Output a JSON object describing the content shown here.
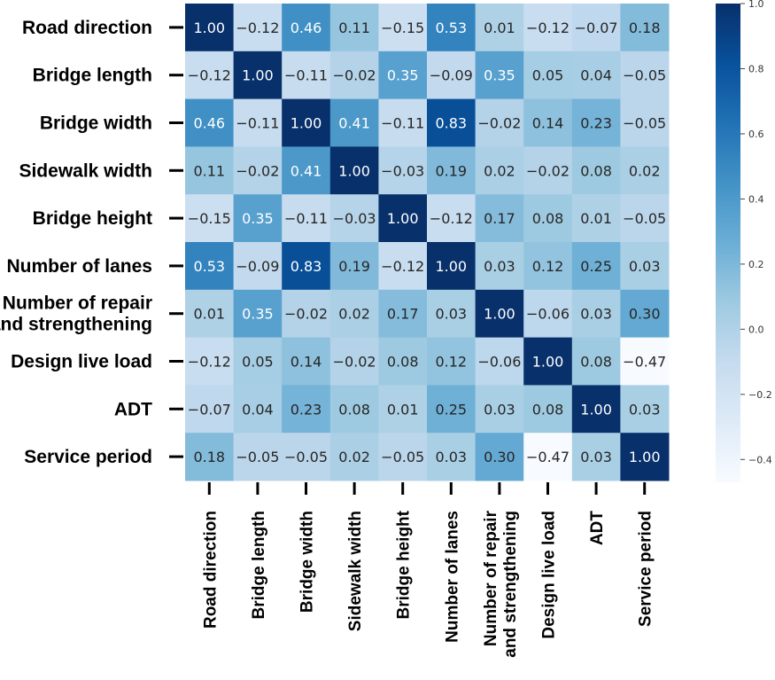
{
  "chart_data": {
    "type": "heatmap",
    "labels": [
      "Road direction",
      "Bridge length",
      "Bridge width",
      "Sidewalk width",
      "Bridge height",
      "Number of lanes",
      "Number of repair and strengthening",
      "Design live load",
      "ADT",
      "Service period"
    ],
    "row_labels": [
      [
        "Road direction"
      ],
      [
        "Bridge length"
      ],
      [
        "Bridge width"
      ],
      [
        "Sidewalk width"
      ],
      [
        "Bridge height"
      ],
      [
        "Number of lanes"
      ],
      [
        "Number of repair",
        "and strengthening"
      ],
      [
        "Design live load"
      ],
      [
        "ADT"
      ],
      [
        "Service period"
      ]
    ],
    "col_labels": [
      [
        "Road direction"
      ],
      [
        "Bridge length"
      ],
      [
        "Bridge width"
      ],
      [
        "Sidewalk width"
      ],
      [
        "Bridge height"
      ],
      [
        "Number of lanes"
      ],
      [
        "Number of repair",
        "and strengthening"
      ],
      [
        "Design live load"
      ],
      [
        "ADT"
      ],
      [
        "Service period"
      ]
    ],
    "values": [
      [
        1.0,
        -0.12,
        0.46,
        0.11,
        -0.15,
        0.53,
        0.01,
        -0.12,
        -0.07,
        0.18
      ],
      [
        -0.12,
        1.0,
        -0.11,
        -0.02,
        0.35,
        -0.09,
        0.35,
        0.05,
        0.04,
        -0.05
      ],
      [
        0.46,
        -0.11,
        1.0,
        0.41,
        -0.11,
        0.83,
        -0.02,
        0.14,
        0.23,
        -0.05
      ],
      [
        0.11,
        -0.02,
        0.41,
        1.0,
        -0.03,
        0.19,
        0.02,
        -0.02,
        0.08,
        0.02
      ],
      [
        -0.15,
        0.35,
        -0.11,
        -0.03,
        1.0,
        -0.12,
        0.17,
        0.08,
        0.01,
        -0.05
      ],
      [
        0.53,
        -0.09,
        0.83,
        0.19,
        -0.12,
        1.0,
        0.03,
        0.12,
        0.25,
        0.03
      ],
      [
        0.01,
        0.35,
        -0.02,
        0.02,
        0.17,
        0.03,
        1.0,
        -0.06,
        0.03,
        0.3
      ],
      [
        -0.12,
        0.05,
        0.14,
        -0.02,
        0.08,
        0.12,
        -0.06,
        1.0,
        0.08,
        -0.47
      ],
      [
        -0.07,
        0.04,
        0.23,
        0.08,
        0.01,
        0.25,
        0.03,
        0.08,
        1.0,
        0.03
      ],
      [
        0.18,
        -0.05,
        -0.05,
        0.02,
        -0.05,
        0.03,
        0.3,
        -0.47,
        0.03,
        1.0
      ]
    ],
    "cell_labels": [
      [
        "1.00",
        "−0.12",
        "0.46",
        "0.11",
        "−0.15",
        "0.53",
        "0.01",
        "−0.12",
        "−0.07",
        "0.18"
      ],
      [
        "−0.12",
        "1.00",
        "−0.11",
        "−0.02",
        "0.35",
        "−0.09",
        "0.35",
        "0.05",
        "0.04",
        "−0.05"
      ],
      [
        "0.46",
        "−0.11",
        "1.00",
        "0.41",
        "−0.11",
        "0.83",
        "−0.02",
        "0.14",
        "0.23",
        "−0.05"
      ],
      [
        "0.11",
        "−0.02",
        "0.41",
        "1.00",
        "−0.03",
        "0.19",
        "0.02",
        "−0.02",
        "0.08",
        "0.02"
      ],
      [
        "−0.15",
        "0.35",
        "−0.11",
        "−0.03",
        "1.00",
        "−0.12",
        "0.17",
        "0.08",
        "0.01",
        "−0.05"
      ],
      [
        "0.53",
        "−0.09",
        "0.83",
        "0.19",
        "−0.12",
        "1.00",
        "0.03",
        "0.12",
        "0.25",
        "0.03"
      ],
      [
        "0.01",
        "0.35",
        "−0.02",
        "0.02",
        "0.17",
        "0.03",
        "1.00",
        "−0.06",
        "0.03",
        "0.30"
      ],
      [
        "−0.12",
        "0.05",
        "0.14",
        "−0.02",
        "0.08",
        "0.12",
        "−0.06",
        "1.00",
        "0.08",
        "−0.47"
      ],
      [
        "−0.07",
        "0.04",
        "0.23",
        "0.08",
        "0.01",
        "0.25",
        "0.03",
        "0.08",
        "1.00",
        "0.03"
      ],
      [
        "0.18",
        "−0.05",
        "−0.05",
        "0.02",
        "−0.05",
        "0.03",
        "0.30",
        "−0.47",
        "0.03",
        "1.00"
      ]
    ],
    "colorscale": {
      "name": "Blues",
      "vmin": -0.47,
      "vmax": 1.0,
      "ticks": [
        1.0,
        0.8,
        0.6,
        0.4,
        0.2,
        0.0,
        -0.2,
        -0.4
      ],
      "tick_labels": [
        "1.0",
        "0.8",
        "0.6",
        "0.4",
        "0.2",
        "0.0",
        "−0.2",
        "−0.4"
      ]
    },
    "colorbar": "right",
    "grid": false
  }
}
